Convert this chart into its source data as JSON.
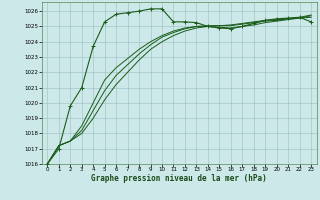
{
  "xlabel": "Graphe pression niveau de la mer (hPa)",
  "bg_color": "#cce8e8",
  "grid_color": "#9bbfbf",
  "line_color": "#1a5c1a",
  "ylim_min": 1016,
  "ylim_max": 1026.6,
  "xlim_min": -0.5,
  "xlim_max": 23.5,
  "yticks": [
    1016,
    1017,
    1018,
    1019,
    1020,
    1021,
    1022,
    1023,
    1024,
    1025,
    1026
  ],
  "xticks": [
    0,
    1,
    2,
    3,
    4,
    5,
    6,
    7,
    8,
    9,
    10,
    11,
    12,
    13,
    14,
    15,
    16,
    17,
    18,
    19,
    20,
    21,
    22,
    23
  ],
  "series_with_markers": [
    [
      1016.0,
      1017.0,
      1019.8,
      1021.0,
      1023.7,
      1025.3,
      1025.8,
      1025.9,
      1026.0,
      1026.15,
      1026.15,
      1025.3,
      1025.3,
      1025.25,
      1025.0,
      1024.9,
      1024.85,
      1025.0,
      1025.2,
      1025.4,
      1025.5,
      1025.55,
      1025.6,
      1025.3
    ]
  ],
  "series_plain": [
    [
      1016.0,
      1017.2,
      1017.5,
      1018.0,
      1019.0,
      1020.2,
      1021.2,
      1022.0,
      1022.8,
      1023.5,
      1024.0,
      1024.4,
      1024.7,
      1024.9,
      1025.0,
      1025.05,
      1025.1,
      1025.2,
      1025.3,
      1025.4,
      1025.45,
      1025.5,
      1025.55,
      1025.6
    ],
    [
      1016.0,
      1017.2,
      1017.5,
      1018.2,
      1019.5,
      1020.8,
      1021.8,
      1022.5,
      1023.2,
      1023.8,
      1024.3,
      1024.6,
      1024.85,
      1025.0,
      1025.05,
      1025.05,
      1025.05,
      1025.15,
      1025.25,
      1025.35,
      1025.4,
      1025.5,
      1025.6,
      1025.75
    ],
    [
      1016.0,
      1017.2,
      1017.5,
      1018.5,
      1020.0,
      1021.5,
      1022.3,
      1022.9,
      1023.5,
      1024.0,
      1024.4,
      1024.7,
      1024.9,
      1025.0,
      1025.0,
      1024.95,
      1024.9,
      1025.0,
      1025.1,
      1025.25,
      1025.35,
      1025.45,
      1025.55,
      1025.7
    ]
  ]
}
